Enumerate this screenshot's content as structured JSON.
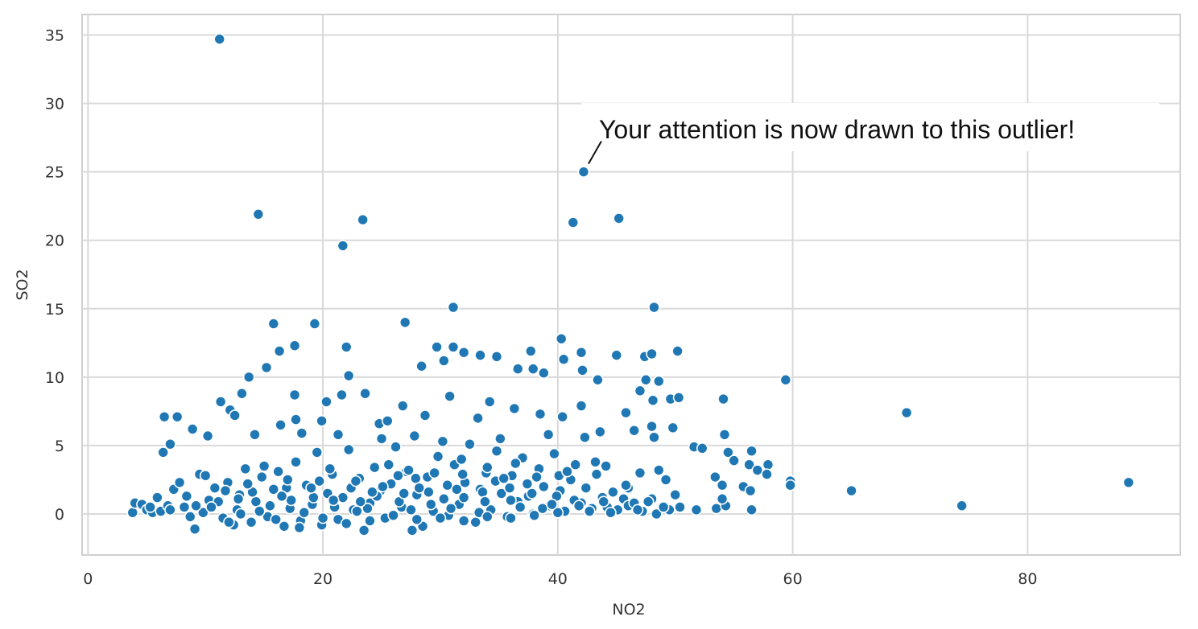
{
  "chart_data": {
    "type": "scatter",
    "xlabel": "NO2",
    "ylabel": "SO2",
    "xlim": [
      -0.5,
      93
    ],
    "ylim": [
      -3,
      36.5
    ],
    "x_ticks": [
      0,
      20,
      40,
      60,
      80
    ],
    "y_ticks": [
      0,
      5,
      10,
      15,
      20,
      25,
      30,
      35
    ],
    "grid": true,
    "marker_color": "#1f77b4",
    "annotation": {
      "text": "Your attention is now drawn to this outlier!",
      "point": [
        42.2,
        25.0
      ]
    },
    "points": [
      [
        11.2,
        34.7
      ],
      [
        14.5,
        21.9
      ],
      [
        23.4,
        21.5
      ],
      [
        21.7,
        19.6
      ],
      [
        42.2,
        25.0
      ],
      [
        41.3,
        21.3
      ],
      [
        45.2,
        21.6
      ],
      [
        31.1,
        15.1
      ],
      [
        48.2,
        15.1
      ],
      [
        15.8,
        13.9
      ],
      [
        19.3,
        13.9
      ],
      [
        27.0,
        14.0
      ],
      [
        17.6,
        12.3
      ],
      [
        16.3,
        11.9
      ],
      [
        22.0,
        12.2
      ],
      [
        29.7,
        12.2
      ],
      [
        31.1,
        12.2
      ],
      [
        32.0,
        11.8
      ],
      [
        33.4,
        11.6
      ],
      [
        34.8,
        11.5
      ],
      [
        37.7,
        11.9
      ],
      [
        40.3,
        12.8
      ],
      [
        42.0,
        11.8
      ],
      [
        45.0,
        11.6
      ],
      [
        47.4,
        11.5
      ],
      [
        48.0,
        11.7
      ],
      [
        50.2,
        11.9
      ],
      [
        30.3,
        11.2
      ],
      [
        15.2,
        10.7
      ],
      [
        13.7,
        10.0
      ],
      [
        22.2,
        10.1
      ],
      [
        28.4,
        10.8
      ],
      [
        36.6,
        10.6
      ],
      [
        37.9,
        10.6
      ],
      [
        38.8,
        10.3
      ],
      [
        40.5,
        11.3
      ],
      [
        42.1,
        10.5
      ],
      [
        59.4,
        9.8
      ],
      [
        69.7,
        7.4
      ],
      [
        43.4,
        9.8
      ],
      [
        47.5,
        9.8
      ],
      [
        48.6,
        9.7
      ],
      [
        11.3,
        8.2
      ],
      [
        13.1,
        8.8
      ],
      [
        17.6,
        8.7
      ],
      [
        20.3,
        8.2
      ],
      [
        21.6,
        8.7
      ],
      [
        23.6,
        8.8
      ],
      [
        26.8,
        7.9
      ],
      [
        30.8,
        8.6
      ],
      [
        34.2,
        8.2
      ],
      [
        36.3,
        7.7
      ],
      [
        42.0,
        7.9
      ],
      [
        45.8,
        7.4
      ],
      [
        47.0,
        9.0
      ],
      [
        48.1,
        8.3
      ],
      [
        49.6,
        8.4
      ],
      [
        50.3,
        8.5
      ],
      [
        54.1,
        8.4
      ],
      [
        6.5,
        7.1
      ],
      [
        7.6,
        7.1
      ],
      [
        12.1,
        7.6
      ],
      [
        12.5,
        7.2
      ],
      [
        17.7,
        6.9
      ],
      [
        19.9,
        6.8
      ],
      [
        24.8,
        6.6
      ],
      [
        25.5,
        6.8
      ],
      [
        28.7,
        7.2
      ],
      [
        33.2,
        7.0
      ],
      [
        38.5,
        7.3
      ],
      [
        40.4,
        7.1
      ],
      [
        43.6,
        6.0
      ],
      [
        46.5,
        6.1
      ],
      [
        48.0,
        6.4
      ],
      [
        49.8,
        6.3
      ],
      [
        6.4,
        4.5
      ],
      [
        7.0,
        5.1
      ],
      [
        8.9,
        6.2
      ],
      [
        10.2,
        5.7
      ],
      [
        14.2,
        5.8
      ],
      [
        16.4,
        6.5
      ],
      [
        18.2,
        5.9
      ],
      [
        21.3,
        5.8
      ],
      [
        25.0,
        5.5
      ],
      [
        27.8,
        5.7
      ],
      [
        30.2,
        5.3
      ],
      [
        35.1,
        5.5
      ],
      [
        39.2,
        5.8
      ],
      [
        42.3,
        5.6
      ],
      [
        48.2,
        5.6
      ],
      [
        51.6,
        4.9
      ],
      [
        52.3,
        4.8
      ],
      [
        54.2,
        5.8
      ],
      [
        54.5,
        4.5
      ],
      [
        55.0,
        3.9
      ],
      [
        56.5,
        4.6
      ],
      [
        56.3,
        3.6
      ],
      [
        57.0,
        3.2
      ],
      [
        57.9,
        3.6
      ],
      [
        57.8,
        2.9
      ],
      [
        53.4,
        2.7
      ],
      [
        54.0,
        2.1
      ],
      [
        55.8,
        2.0
      ],
      [
        56.4,
        1.7
      ],
      [
        59.8,
        2.4
      ],
      [
        59.8,
        2.1
      ],
      [
        65.0,
        1.7
      ],
      [
        74.4,
        0.6
      ],
      [
        88.6,
        2.3
      ],
      [
        53.5,
        0.4
      ],
      [
        54.3,
        0.6
      ],
      [
        56.5,
        0.3
      ],
      [
        54.0,
        1.1
      ],
      [
        51.8,
        0.3
      ],
      [
        49.5,
        0.3
      ],
      [
        50.4,
        0.5
      ],
      [
        48.0,
        1.1
      ],
      [
        47.0,
        3.0
      ],
      [
        48.6,
        3.2
      ],
      [
        49.2,
        2.5
      ],
      [
        46.0,
        1.9
      ],
      [
        44.1,
        3.5
      ],
      [
        43.2,
        3.8
      ],
      [
        45.8,
        2.1
      ],
      [
        3.8,
        0.1
      ],
      [
        4.0,
        0.8
      ],
      [
        4.6,
        0.7
      ],
      [
        5.0,
        0.3
      ],
      [
        5.5,
        0.1
      ],
      [
        5.9,
        1.2
      ],
      [
        6.2,
        0.2
      ],
      [
        6.8,
        0.6
      ],
      [
        7.3,
        1.8
      ],
      [
        7.8,
        2.3
      ],
      [
        8.2,
        0.5
      ],
      [
        8.7,
        -0.2
      ],
      [
        9.1,
        -1.1
      ],
      [
        9.5,
        2.9
      ],
      [
        10.0,
        2.8
      ],
      [
        10.3,
        1.0
      ],
      [
        10.8,
        1.9
      ],
      [
        11.5,
        -0.3
      ],
      [
        11.9,
        2.3
      ],
      [
        12.4,
        -0.8
      ],
      [
        12.9,
        1.4
      ],
      [
        13.4,
        3.3
      ],
      [
        13.9,
        -0.6
      ],
      [
        14.3,
        0.9
      ],
      [
        14.8,
        2.7
      ],
      [
        15.3,
        -0.2
      ],
      [
        15.8,
        1.8
      ],
      [
        16.2,
        3.1
      ],
      [
        16.7,
        -0.9
      ],
      [
        17.2,
        0.4
      ],
      [
        17.7,
        3.8
      ],
      [
        18.1,
        -0.5
      ],
      [
        18.6,
        2.1
      ],
      [
        19.1,
        0.7
      ],
      [
        19.5,
        4.5
      ],
      [
        19.9,
        -0.8
      ],
      [
        20.4,
        1.5
      ],
      [
        20.8,
        2.9
      ],
      [
        21.3,
        -0.4
      ],
      [
        21.7,
        1.2
      ],
      [
        22.2,
        4.7
      ],
      [
        22.6,
        0.3
      ],
      [
        23.1,
        2.6
      ],
      [
        23.5,
        -1.2
      ],
      [
        24.0,
        0.8
      ],
      [
        24.4,
        3.4
      ],
      [
        24.9,
        1.7
      ],
      [
        25.3,
        -0.3
      ],
      [
        25.8,
        2.2
      ],
      [
        26.2,
        4.9
      ],
      [
        26.7,
        0.5
      ],
      [
        27.1,
        3.1
      ],
      [
        27.6,
        -1.2
      ],
      [
        28.0,
        1.4
      ],
      [
        28.5,
        -0.9
      ],
      [
        28.9,
        2.7
      ],
      [
        29.4,
        0.2
      ],
      [
        29.8,
        4.2
      ],
      [
        30.3,
        1.1
      ],
      [
        30.7,
        -0.1
      ],
      [
        31.2,
        3.6
      ],
      [
        31.6,
        0.7
      ],
      [
        32.1,
        2.3
      ],
      [
        32.5,
        5.1
      ],
      [
        33.0,
        -0.6
      ],
      [
        33.4,
        1.8
      ],
      [
        33.9,
        3.0
      ],
      [
        34.3,
        0.3
      ],
      [
        34.8,
        4.6
      ],
      [
        35.2,
        1.5
      ],
      [
        35.7,
        -0.2
      ],
      [
        36.1,
        2.8
      ],
      [
        36.6,
        0.9
      ],
      [
        37.0,
        4.1
      ],
      [
        37.5,
        1.3
      ],
      [
        37.9,
        0.0
      ],
      [
        38.4,
        3.3
      ],
      [
        38.8,
        2.0
      ],
      [
        39.3,
        0.6
      ],
      [
        39.7,
        4.4
      ],
      [
        40.2,
        1.7
      ],
      [
        40.6,
        0.2
      ],
      [
        41.1,
        2.5
      ],
      [
        41.5,
        3.6
      ],
      [
        42.0,
        0.8
      ],
      [
        42.4,
        1.9
      ],
      [
        42.9,
        0.4
      ],
      [
        43.3,
        2.9
      ],
      [
        43.8,
        1.2
      ],
      [
        44.2,
        0.5
      ],
      [
        44.7,
        1.6
      ],
      [
        45.1,
        0.3
      ],
      [
        45.6,
        1.1
      ],
      [
        46.0,
        0.6
      ],
      [
        46.5,
        0.8
      ],
      [
        47.2,
        0.2
      ],
      [
        47.7,
        0.9
      ],
      [
        48.4,
        0.0
      ],
      [
        49.0,
        0.5
      ],
      [
        50.0,
        1.4
      ],
      [
        8.4,
        1.3
      ],
      [
        9.8,
        0.1
      ],
      [
        11.1,
        0.9
      ],
      [
        12.7,
        0.3
      ],
      [
        14.0,
        1.6
      ],
      [
        15.5,
        0.6
      ],
      [
        16.9,
        1.9
      ],
      [
        18.4,
        0.1
      ],
      [
        19.7,
        2.4
      ],
      [
        21.0,
        0.5
      ],
      [
        22.4,
        1.9
      ],
      [
        23.8,
        0.4
      ],
      [
        25.1,
        2.0
      ],
      [
        26.5,
        0.9
      ],
      [
        27.9,
        2.6
      ],
      [
        29.2,
        0.7
      ],
      [
        30.6,
        2.1
      ],
      [
        32.0,
        1.2
      ],
      [
        33.3,
        0.1
      ],
      [
        34.7,
        2.4
      ],
      [
        36.0,
        1.0
      ],
      [
        37.4,
        2.2
      ],
      [
        38.7,
        0.4
      ],
      [
        40.1,
        2.8
      ],
      [
        41.4,
        1.0
      ],
      [
        12.0,
        -0.6
      ],
      [
        13.0,
        0.0
      ],
      [
        16.0,
        -0.4
      ],
      [
        18.0,
        -1.0
      ],
      [
        20.0,
        -0.3
      ],
      [
        22.0,
        -0.7
      ],
      [
        24.0,
        -0.5
      ],
      [
        26.0,
        -0.1
      ],
      [
        28.0,
        -0.4
      ],
      [
        30.0,
        -0.3
      ],
      [
        32.0,
        -0.5
      ],
      [
        34.0,
        -0.2
      ],
      [
        36.0,
        -0.3
      ],
      [
        38.0,
        -0.1
      ],
      [
        40.0,
        0.1
      ],
      [
        10.5,
        0.5
      ],
      [
        14.6,
        0.2
      ],
      [
        17.3,
        1.0
      ],
      [
        19.2,
        1.2
      ],
      [
        20.9,
        1.0
      ],
      [
        23.2,
        0.9
      ],
      [
        24.6,
        1.3
      ],
      [
        26.9,
        1.5
      ],
      [
        29.0,
        1.6
      ],
      [
        31.4,
        1.8
      ],
      [
        33.6,
        1.6
      ],
      [
        35.9,
        1.9
      ],
      [
        37.8,
        1.5
      ],
      [
        39.9,
        1.3
      ],
      [
        41.8,
        0.6
      ],
      [
        43.9,
        0.9
      ],
      [
        11.7,
        1.7
      ],
      [
        13.6,
        2.2
      ],
      [
        15.0,
        3.5
      ],
      [
        17.0,
        2.5
      ],
      [
        20.6,
        3.3
      ],
      [
        22.8,
        2.4
      ],
      [
        25.6,
        3.6
      ],
      [
        27.3,
        3.2
      ],
      [
        29.5,
        3.0
      ],
      [
        31.8,
        4.0
      ],
      [
        34.0,
        3.4
      ],
      [
        36.4,
        3.7
      ],
      [
        38.2,
        2.7
      ],
      [
        40.8,
        3.1
      ],
      [
        26.4,
        2.8
      ],
      [
        31.9,
        2.9
      ],
      [
        35.4,
        2.6
      ],
      [
        28.2,
        1.9
      ],
      [
        24.2,
        1.6
      ],
      [
        19.0,
        1.9
      ],
      [
        16.5,
        1.3
      ],
      [
        12.8,
        1.1
      ],
      [
        9.2,
        0.6
      ],
      [
        7.0,
        0.3
      ],
      [
        5.3,
        0.5
      ],
      [
        30.9,
        0.4
      ],
      [
        33.8,
        0.9
      ],
      [
        36.8,
        0.5
      ],
      [
        39.5,
        0.7
      ],
      [
        22.9,
        0.2
      ],
      [
        27.5,
        0.3
      ],
      [
        42.7,
        0.2
      ],
      [
        44.5,
        0.1
      ],
      [
        46.8,
        0.3
      ]
    ]
  }
}
